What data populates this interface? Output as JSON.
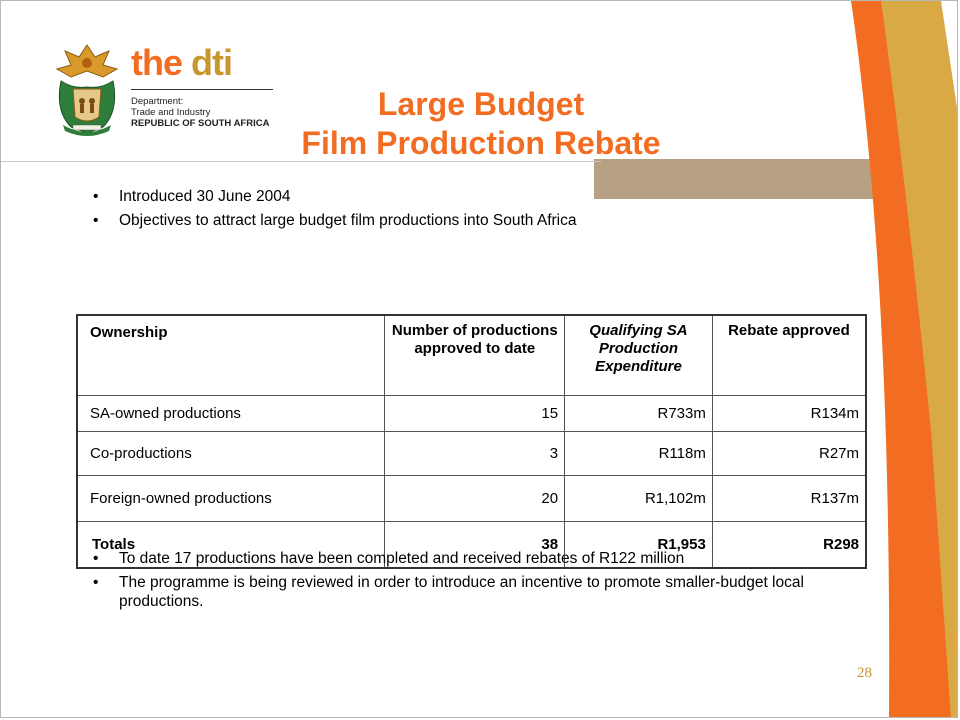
{
  "logo": {
    "brand_the": "the",
    "brand_dti": "dti",
    "sub_line1": "Department:",
    "sub_line2": "Trade and Industry",
    "sub_line3": "REPUBLIC OF SOUTH AFRICA"
  },
  "title": {
    "line1": "Large Budget",
    "line2": "Film Production Rebate"
  },
  "top_bullets": [
    "Introduced 30 June 2004",
    "Objectives to attract large budget film productions into South Africa"
  ],
  "table": {
    "headers": {
      "ownership": "Ownership",
      "productions": "Number of productions approved to date",
      "expenditure": "Qualifying SA Production Expenditure",
      "rebate": "Rebate approved"
    },
    "rows": [
      {
        "ownership": "SA-owned productions",
        "productions": "15",
        "expenditure": "R733m",
        "rebate": "R134m"
      },
      {
        "ownership": "Co-productions",
        "productions": "3",
        "expenditure": "R118m",
        "rebate": "R27m"
      },
      {
        "ownership": "Foreign-owned productions",
        "productions": "20",
        "expenditure": "R1,102m",
        "rebate": "R137m"
      }
    ],
    "totals": {
      "ownership": "Totals",
      "productions": "38",
      "expenditure": "R1,953",
      "rebate": "R298"
    }
  },
  "bottom_bullets": [
    "To date  17 productions have been completed and received rebates of R122 million",
    "The programme is being reviewed in order to introduce an incentive to promote smaller-budget local productions."
  ],
  "page_number": "28",
  "colors": {
    "accent_orange": "#f26d21",
    "accent_gold": "#c7962d",
    "band_tan": "#b8a082"
  }
}
